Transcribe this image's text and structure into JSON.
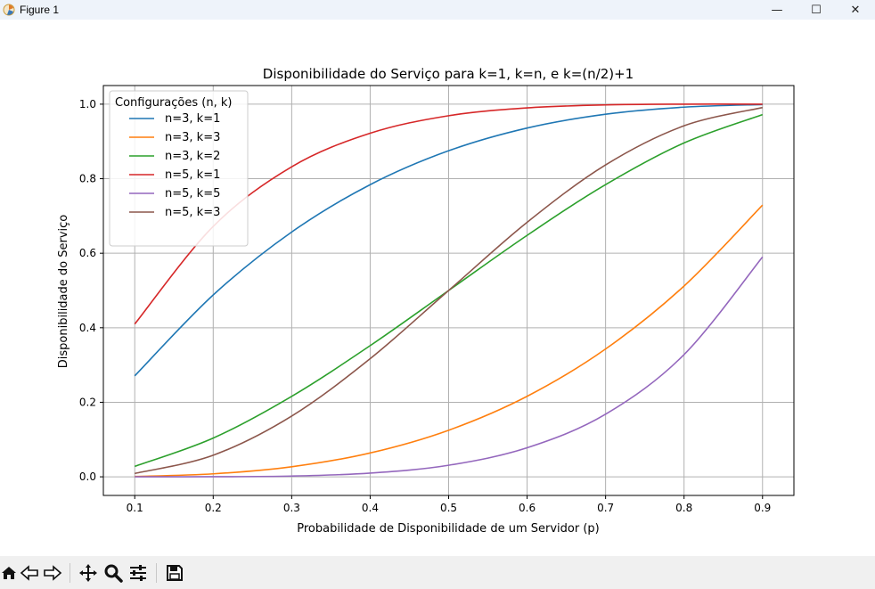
{
  "window": {
    "title": "Figure 1",
    "app_icon": "matplotlib-icon",
    "controls": [
      "minimize-icon",
      "maximize-icon",
      "close-icon"
    ],
    "minimize_glyph": "—",
    "maximize_glyph": "☐",
    "close_glyph": "✕"
  },
  "toolbar": {
    "buttons": [
      "home-icon",
      "back-icon",
      "forward-icon",
      "pan-icon",
      "zoom-icon",
      "configure-subplots-icon",
      "save-icon"
    ]
  },
  "colors": {
    "n3k1": "#1f77b4",
    "n3k3": "#ff7f0e",
    "n3k2": "#2ca02c",
    "n5k1": "#d62728",
    "n5k5": "#9467bd",
    "n5k3": "#8c564b",
    "grid": "#b0b0b0"
  },
  "chart_data": {
    "type": "line",
    "title": "Disponibilidade do Serviço para k=1, k=n, e k=(n/2)+1",
    "xlabel": "Probabilidade de Disponibilidade de um Servidor (p)",
    "ylabel": "Disponibilidade do Serviço",
    "xlim": [
      0.06,
      0.94
    ],
    "ylim": [
      -0.05,
      1.05
    ],
    "xticks": [
      0.1,
      0.2,
      0.3,
      0.4,
      0.5,
      0.6,
      0.7,
      0.8,
      0.9
    ],
    "xtick_labels": [
      "0.1",
      "0.2",
      "0.3",
      "0.4",
      "0.5",
      "0.6",
      "0.7",
      "0.8",
      "0.9"
    ],
    "yticks": [
      0.0,
      0.2,
      0.4,
      0.6,
      0.8,
      1.0
    ],
    "ytick_labels": [
      "0.0",
      "0.2",
      "0.4",
      "0.6",
      "0.8",
      "1.0"
    ],
    "grid": true,
    "legend": {
      "title": "Configurações (n, k)",
      "placement": "top-left"
    },
    "x": [
      0.1,
      0.2,
      0.3,
      0.4,
      0.5,
      0.6,
      0.7,
      0.8,
      0.9
    ],
    "series": [
      {
        "name": "n=3, k=1",
        "color": "#1f77b4",
        "values": [
          0.271,
          0.488,
          0.657,
          0.784,
          0.875,
          0.936,
          0.973,
          0.992,
          0.999
        ]
      },
      {
        "name": "n=3, k=3",
        "color": "#ff7f0e",
        "values": [
          0.001,
          0.008,
          0.027,
          0.064,
          0.125,
          0.216,
          0.343,
          0.512,
          0.729
        ]
      },
      {
        "name": "n=3, k=2",
        "color": "#2ca02c",
        "values": [
          0.028,
          0.104,
          0.216,
          0.352,
          0.5,
          0.648,
          0.784,
          0.896,
          0.972
        ]
      },
      {
        "name": "n=5, k=1",
        "color": "#d62728",
        "values": [
          0.41,
          0.672,
          0.832,
          0.922,
          0.969,
          0.99,
          0.998,
          1.0,
          1.0
        ]
      },
      {
        "name": "n=5, k=5",
        "color": "#9467bd",
        "values": [
          0.0,
          0.0003,
          0.002,
          0.01,
          0.031,
          0.078,
          0.168,
          0.328,
          0.59
        ]
      },
      {
        "name": "n=5, k=3",
        "color": "#8c564b",
        "values": [
          0.009,
          0.058,
          0.163,
          0.317,
          0.5,
          0.683,
          0.837,
          0.942,
          0.991
        ]
      }
    ]
  }
}
